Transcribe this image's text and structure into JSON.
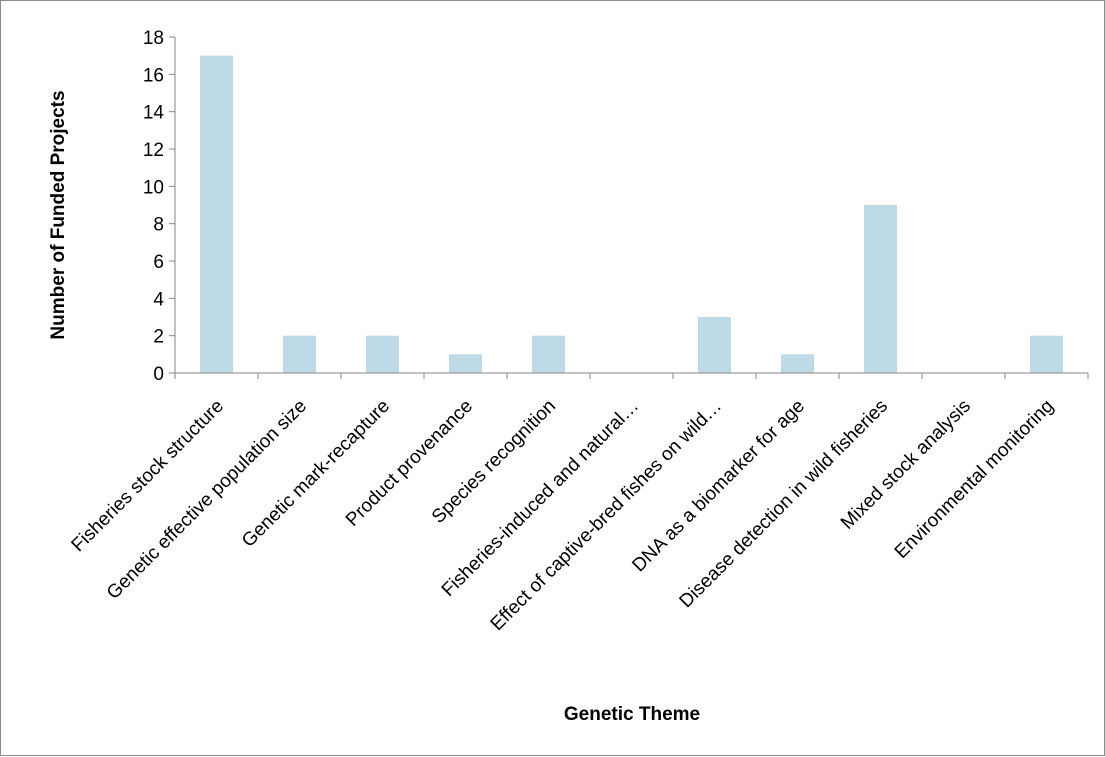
{
  "chart_data": {
    "type": "bar",
    "title": "",
    "xlabel": "Genetic Theme",
    "ylabel": "Number of Funded Projects",
    "ylim": [
      0,
      18
    ],
    "yticks": [
      0,
      2,
      4,
      6,
      8,
      10,
      12,
      14,
      16,
      18
    ],
    "grid": false,
    "legend": "none",
    "bar_color": "#BFDAE7",
    "categories": [
      "Fisheries stock structure",
      "Genetic effective population size",
      "Genetic mark-recapture",
      "Product provenance",
      "Species recognition",
      "Fisheries-induced and natural…",
      "Effect of captive-bred fishes on wild…",
      "DNA as a biomarker for age",
      "Disease detection in wild fisheries",
      "Mixed stock analysis",
      "Environmental monitoring"
    ],
    "values": [
      17,
      2,
      2,
      1,
      2,
      0,
      3,
      1,
      9,
      0,
      2
    ]
  }
}
